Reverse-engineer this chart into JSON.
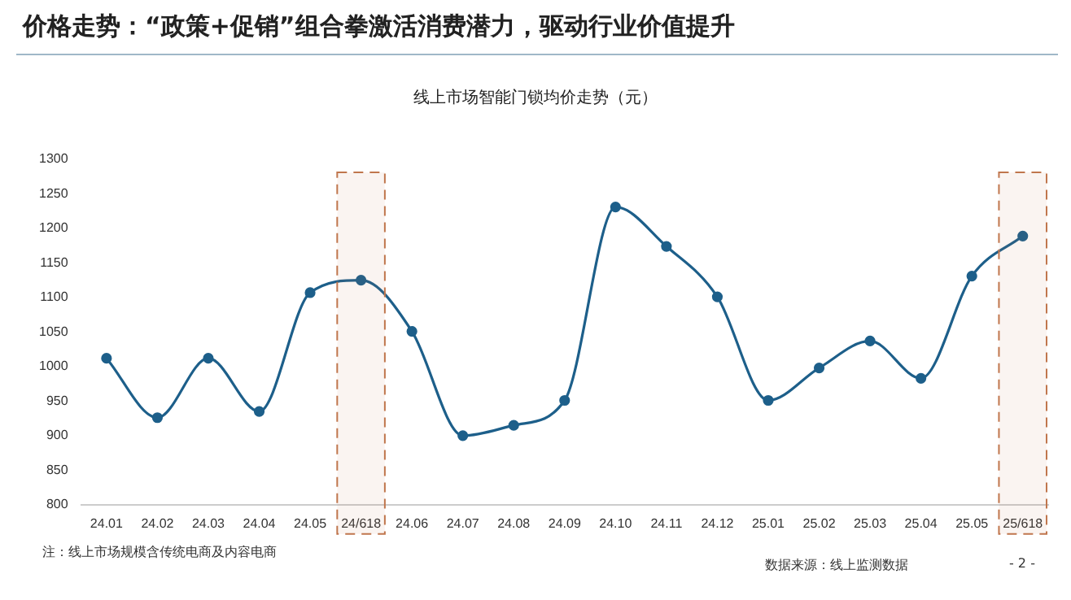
{
  "chart_data": {
    "type": "line",
    "title": "价格走势：“政策+促销”组合拳激活消费潜力，驱动行业价值提升",
    "subtitle": "线上市场智能门锁均价走势（元）",
    "categories": [
      "24.01",
      "24.02",
      "24.03",
      "24.04",
      "24.05",
      "24/618",
      "24.06",
      "24.07",
      "24.08",
      "24.09",
      "24.10",
      "24.11",
      "24.12",
      "25.01",
      "25.02",
      "25.03",
      "25.04",
      "25.05",
      "25/618"
    ],
    "series": [
      {
        "color": "#1d5f8a",
        "values": [
          1012,
          926,
          1012,
          935,
          1107,
          1125,
          1051,
          900,
          915,
          951,
          1231,
          1174,
          1101,
          951,
          998,
          1037,
          983,
          1131,
          1189
        ]
      }
    ],
    "ylim": [
      800,
      1300
    ],
    "yticks": [
      800,
      850,
      900,
      950,
      1000,
      1050,
      1100,
      1150,
      1200,
      1250,
      1300
    ],
    "grid": false,
    "legend": false,
    "marker": "circle",
    "line_style": "solid",
    "bands": [
      {
        "axis": "x",
        "from": "24/618",
        "to": "24/618",
        "color": "#c0764d"
      },
      {
        "axis": "x",
        "from": "25/618",
        "to": "25/618",
        "color": "#c0764d"
      }
    ],
    "annotations": [
      "注：线上市场规模含传统电商及内容电商",
      "数据来源：线上监测数据",
      "- 2 -"
    ]
  }
}
